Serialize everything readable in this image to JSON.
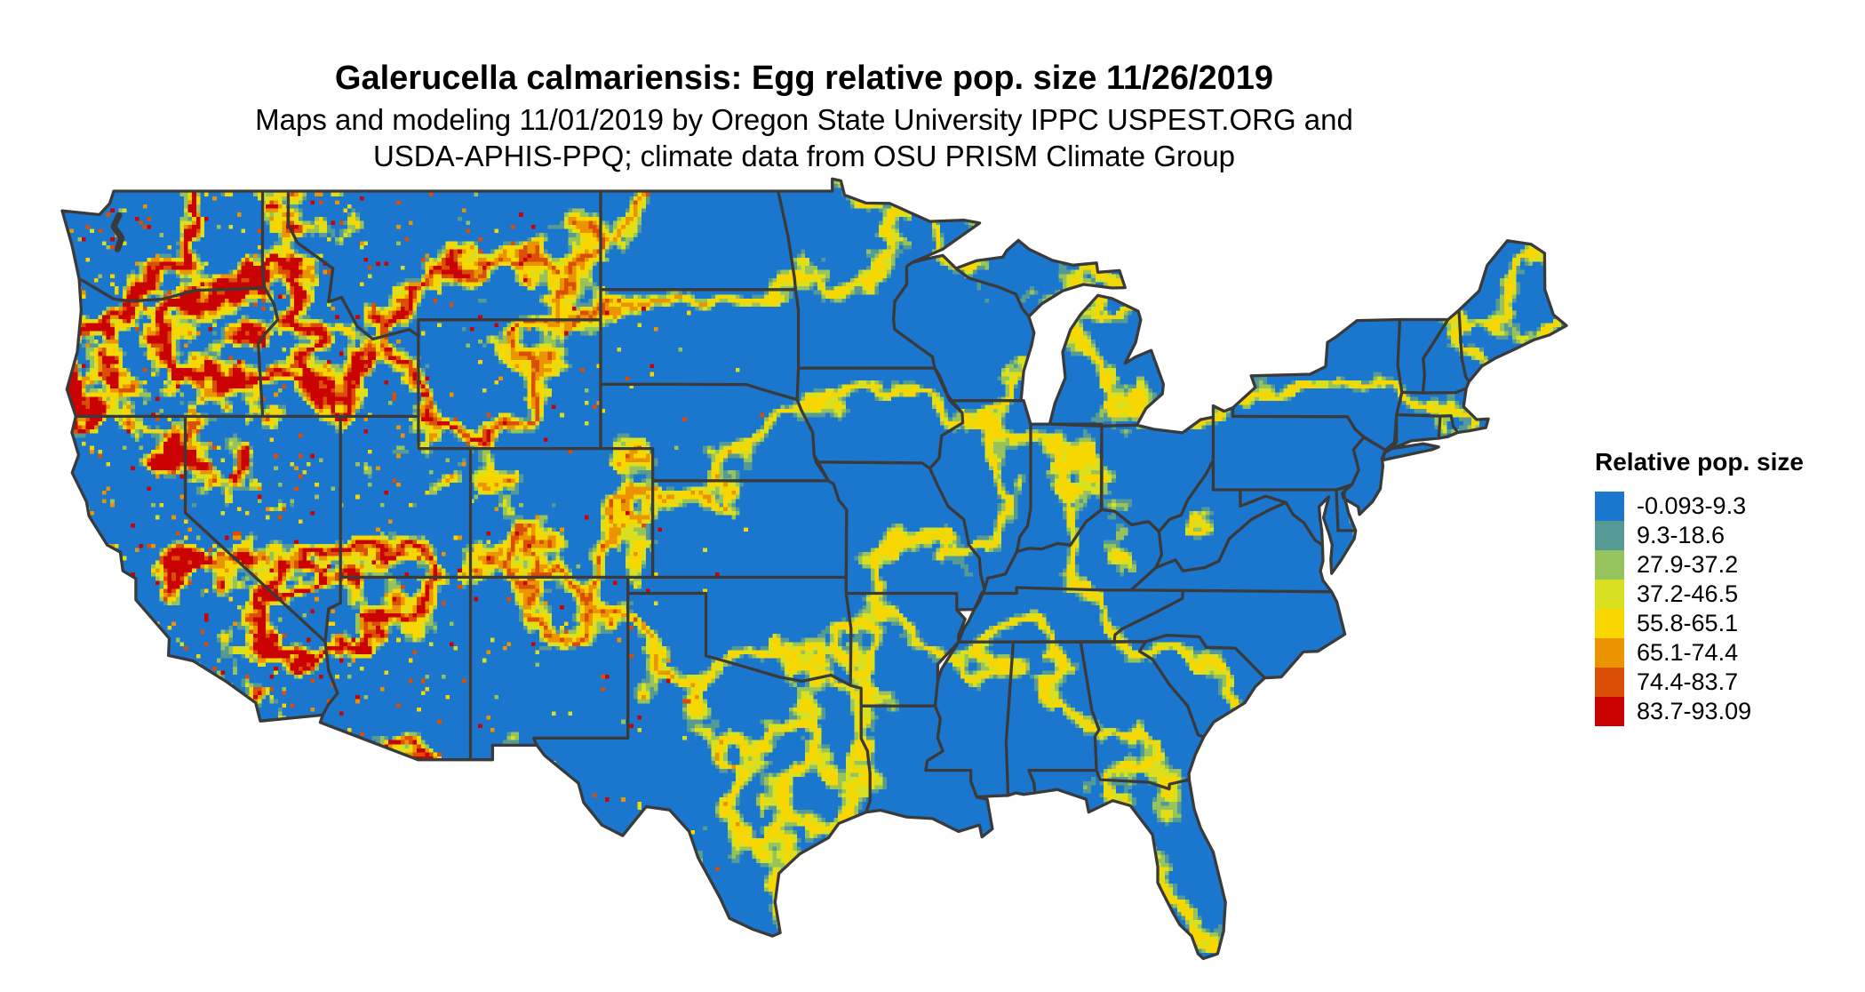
{
  "header": {
    "title": "Galerucella calmariensis: Egg relative pop. size 11/26/2019",
    "subtitle_line1": "Maps and modeling 11/01/2019 by Oregon State University IPPC USPEST.ORG and",
    "subtitle_line2": "USDA-APHIS-PPQ; climate data from OSU PRISM Climate Group"
  },
  "legend": {
    "title": "Relative pop. size",
    "items": [
      {
        "label": "-0.093-9.3",
        "color": "#1B76CE"
      },
      {
        "label": "9.3-18.6",
        "color": "#559A95"
      },
      {
        "label": "27.9-37.2",
        "color": "#97C35C"
      },
      {
        "label": "37.2-46.5",
        "color": "#D9E01F"
      },
      {
        "label": "55.8-65.1",
        "color": "#F8D600"
      },
      {
        "label": "65.1-74.4",
        "color": "#EA9400"
      },
      {
        "label": "74.4-83.7",
        "color": "#DA4F05"
      },
      {
        "label": "83.7-93.09",
        "color": "#CB0202"
      }
    ]
  },
  "map": {
    "border_color": "#3A3A3A",
    "background_color": "#FFFFFF"
  }
}
